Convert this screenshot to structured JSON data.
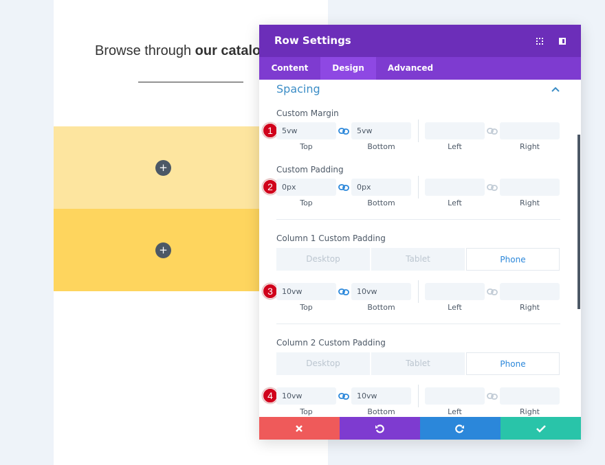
{
  "page": {
    "heading_regular": "Browse through ",
    "heading_bold": "our catalo"
  },
  "panel": {
    "title": "Row Settings",
    "tabs": [
      "Content",
      "Design",
      "Advanced"
    ],
    "active_tab": "Design",
    "section": "Spacing",
    "groups": [
      {
        "badge": "1",
        "label": "Custom Margin",
        "values": [
          "5vw",
          "5vw"
        ],
        "fields": [
          "Top",
          "Bottom",
          "Left",
          "Right"
        ]
      },
      {
        "badge": "2",
        "label": "Custom Padding",
        "values": [
          "0px",
          "0px"
        ],
        "fields": [
          "Top",
          "Bottom",
          "Left",
          "Right"
        ]
      },
      {
        "badge": "3",
        "label": "Column 1 Custom Padding",
        "devices": [
          "Desktop",
          "Tablet",
          "Phone"
        ],
        "values": [
          "10vw",
          "10vw"
        ],
        "fields": [
          "Top",
          "Bottom",
          "Left",
          "Right"
        ]
      },
      {
        "badge": "4",
        "label": "Column 2 Custom Padding",
        "devices": [
          "Desktop",
          "Tablet",
          "Phone"
        ],
        "values": [
          "10vw",
          "10vw"
        ],
        "fields": [
          "Top",
          "Bottom",
          "Left",
          "Right"
        ]
      }
    ]
  }
}
